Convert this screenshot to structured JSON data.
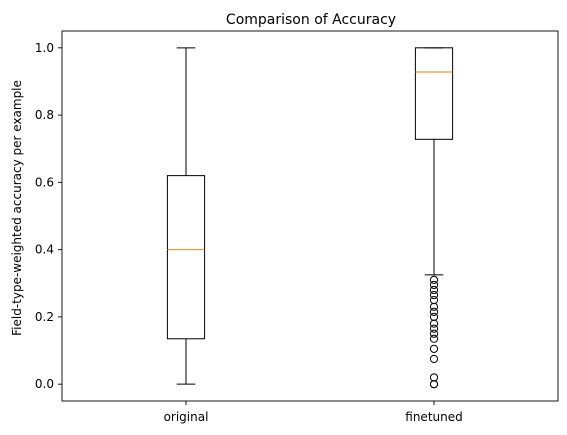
{
  "chart_data": {
    "type": "box",
    "title": "Comparison of Accuracy",
    "xlabel": "",
    "ylabel": "Field-type-weighted accuracy per example",
    "ylim": [
      -0.05,
      1.05
    ],
    "yticks": [
      0.0,
      0.2,
      0.4,
      0.6,
      0.8,
      1.0
    ],
    "ytick_labels": [
      "0.0",
      "0.2",
      "0.4",
      "0.6",
      "0.8",
      "1.0"
    ],
    "categories": [
      "original",
      "finetuned"
    ],
    "series": [
      {
        "category": "original",
        "whisker_low": 0.0,
        "q1": 0.135,
        "median": 0.4,
        "q3": 0.62,
        "whisker_high": 1.0,
        "outliers": []
      },
      {
        "category": "finetuned",
        "whisker_low": 0.325,
        "q1": 0.728,
        "median": 0.928,
        "q3": 1.0,
        "whisker_high": 1.0,
        "outliers": [
          0.0,
          0.0,
          0.02,
          0.075,
          0.105,
          0.135,
          0.15,
          0.165,
          0.18,
          0.2,
          0.215,
          0.23,
          0.25,
          0.265,
          0.28,
          0.295,
          0.31
        ]
      }
    ],
    "grid": false,
    "colors": {
      "box": "#000000",
      "median": "#ff7f0e",
      "outlier": "#000000"
    }
  }
}
